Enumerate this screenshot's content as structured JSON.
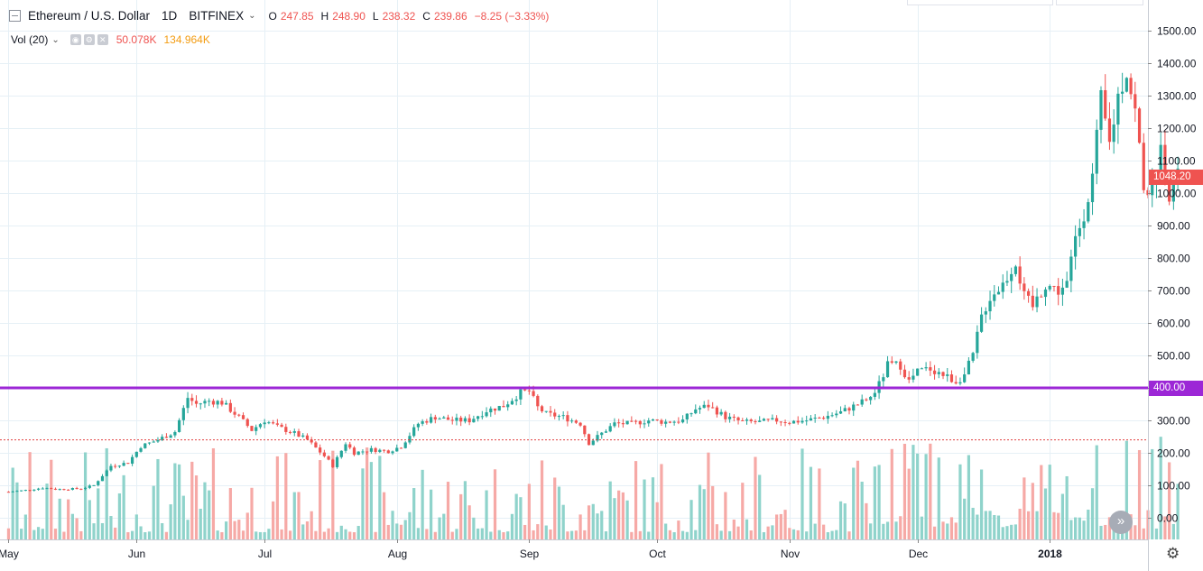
{
  "legend": {
    "symbol": "Ethereum / U.S. Dollar",
    "interval": "1D",
    "exchange": "BITFINEX",
    "open_label": "O",
    "open": "247.85",
    "high_label": "H",
    "high": "248.90",
    "low_label": "L",
    "low": "238.32",
    "close_label": "C",
    "close": "239.86",
    "change": "−8.25 (−3.33%)"
  },
  "volume_legend": {
    "name": "Vol (20)",
    "value": "50.078K",
    "ma_value": "134.964K"
  },
  "colors": {
    "up": "#26a69a",
    "down": "#ef5350",
    "up_vol": "#8fd3cb",
    "down_vol": "#f6a9a6",
    "level_line": "#9c27d6",
    "grid": "#e6f0f6",
    "last_line": "#e04040"
  },
  "price_tags": {
    "last_price": "1048.20",
    "level": "400.00"
  },
  "chart_data": {
    "type": "candlestick",
    "title": "Ethereum / U.S. Dollar · 1D · BITFINEX",
    "ylim": [
      -25,
      1550
    ],
    "y_ticks": [
      0,
      100,
      200,
      300,
      400,
      500,
      600,
      700,
      800,
      900,
      1000,
      1100,
      1200,
      1300,
      1400,
      1500
    ],
    "y_tick_labels": [
      "0.00",
      "100.00",
      "200.00",
      "300.00",
      "400.00",
      "500.00",
      "600.00",
      "700.00",
      "800.00",
      "900.00",
      "1000.00",
      "1100.00",
      "1200.00",
      "1300.00",
      "1400.00",
      "1500.00"
    ],
    "x_labels": [
      {
        "day": 0,
        "label": "May"
      },
      {
        "day": 30,
        "label": "Jun"
      },
      {
        "day": 60,
        "label": "Jul"
      },
      {
        "day": 91,
        "label": "Aug"
      },
      {
        "day": 122,
        "label": "Sep"
      },
      {
        "day": 152,
        "label": "Oct"
      },
      {
        "day": 183,
        "label": "Nov"
      },
      {
        "day": 213,
        "label": "Dec"
      },
      {
        "day": 244,
        "label": "2018"
      }
    ],
    "day_range": [
      -2,
      267
    ],
    "horizontal_levels": [
      {
        "value": 400,
        "label": "400.00"
      }
    ],
    "reference_line": 240,
    "last_price": 1048.2,
    "key_closes": [
      [
        0,
        80
      ],
      [
        4,
        85
      ],
      [
        8,
        92
      ],
      [
        12,
        88
      ],
      [
        17,
        90
      ],
      [
        20,
        100
      ],
      [
        24,
        160
      ],
      [
        28,
        170
      ],
      [
        31,
        220
      ],
      [
        35,
        240
      ],
      [
        39,
        265
      ],
      [
        42,
        370
      ],
      [
        44,
        350
      ],
      [
        47,
        360
      ],
      [
        50,
        355
      ],
      [
        54,
        310
      ],
      [
        57,
        270
      ],
      [
        60,
        300
      ],
      [
        63,
        280
      ],
      [
        67,
        260
      ],
      [
        70,
        240
      ],
      [
        74,
        190
      ],
      [
        76,
        160
      ],
      [
        79,
        230
      ],
      [
        81,
        200
      ],
      [
        85,
        210
      ],
      [
        89,
        205
      ],
      [
        92,
        220
      ],
      [
        96,
        290
      ],
      [
        100,
        310
      ],
      [
        104,
        300
      ],
      [
        108,
        300
      ],
      [
        112,
        330
      ],
      [
        116,
        345
      ],
      [
        120,
        385
      ],
      [
        122,
        390
      ],
      [
        124,
        340
      ],
      [
        126,
        320
      ],
      [
        130,
        310
      ],
      [
        134,
        290
      ],
      [
        136,
        230
      ],
      [
        139,
        260
      ],
      [
        142,
        290
      ],
      [
        146,
        290
      ],
      [
        150,
        300
      ],
      [
        154,
        295
      ],
      [
        158,
        300
      ],
      [
        161,
        335
      ],
      [
        164,
        345
      ],
      [
        168,
        310
      ],
      [
        172,
        295
      ],
      [
        176,
        295
      ],
      [
        180,
        300
      ],
      [
        183,
        295
      ],
      [
        187,
        300
      ],
      [
        191,
        310
      ],
      [
        195,
        325
      ],
      [
        199,
        350
      ],
      [
        202,
        370
      ],
      [
        204,
        410
      ],
      [
        206,
        470
      ],
      [
        209,
        470
      ],
      [
        211,
        420
      ],
      [
        213,
        450
      ],
      [
        216,
        460
      ],
      [
        219,
        440
      ],
      [
        222,
        420
      ],
      [
        224,
        440
      ],
      [
        226,
        500
      ],
      [
        228,
        620
      ],
      [
        230,
        680
      ],
      [
        233,
        720
      ],
      [
        236,
        790
      ],
      [
        238,
        680
      ],
      [
        240,
        650
      ],
      [
        243,
        720
      ],
      [
        246,
        700
      ],
      [
        248,
        720
      ],
      [
        250,
        860
      ],
      [
        252,
        940
      ],
      [
        254,
        1050
      ],
      [
        256,
        1280
      ],
      [
        258,
        1150
      ],
      [
        260,
        1300
      ],
      [
        262,
        1380
      ],
      [
        264,
        1250
      ],
      [
        266,
        1030
      ],
      [
        268,
        1000
      ],
      [
        270,
        1130
      ],
      [
        272,
        1000
      ],
      [
        274,
        1048
      ]
    ]
  }
}
